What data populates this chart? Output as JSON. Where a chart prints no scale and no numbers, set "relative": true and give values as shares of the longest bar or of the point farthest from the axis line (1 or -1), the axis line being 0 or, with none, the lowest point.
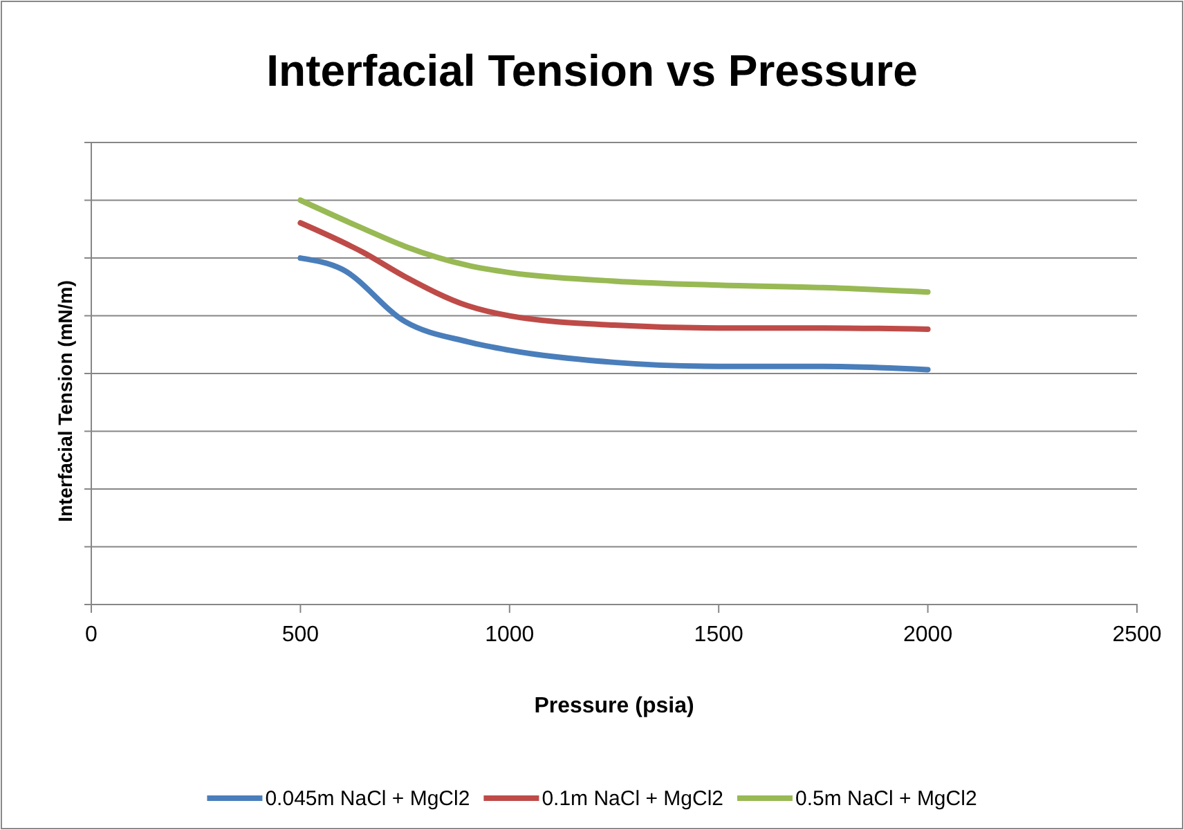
{
  "chart_data": {
    "type": "line",
    "title": "Interfacial Tension vs Pressure",
    "xlabel": "Pressure (psia)",
    "ylabel": "Interfacial Tension  (mN/m)",
    "relative": true,
    "xlim": [
      0,
      2500
    ],
    "xticks": [
      0,
      500,
      1000,
      1500,
      2000,
      2500
    ],
    "grid": "y",
    "legend": "bottom",
    "marker": "none",
    "line_style": "solid",
    "series": [
      {
        "name": "0.045m NaCl + MgCl2",
        "color": "#4a7ebb",
        "x": [
          500,
          600,
          750,
          900,
          1000,
          1250,
          1500,
          1750,
          2000
        ],
        "values": [
          0.857,
          0.829,
          0.7,
          0.65,
          0.629,
          0.599,
          0.589,
          0.589,
          0.581
        ]
      },
      {
        "name": "0.1m NaCl + MgCl2",
        "color": "#be4b48",
        "x": [
          500,
          650,
          750,
          900,
          1000,
          1250,
          1500,
          1750,
          2000
        ],
        "values": [
          0.944,
          0.871,
          0.811,
          0.739,
          0.714,
          0.691,
          0.684,
          0.684,
          0.681
        ]
      },
      {
        "name": "0.5m NaCl + MgCl2",
        "color": "#98b954",
        "x": [
          500,
          650,
          750,
          900,
          1000,
          1250,
          1500,
          1750,
          2000
        ],
        "values": [
          1,
          0.93,
          0.886,
          0.839,
          0.821,
          0.8,
          0.79,
          0.784,
          0.773
        ]
      }
    ]
  }
}
